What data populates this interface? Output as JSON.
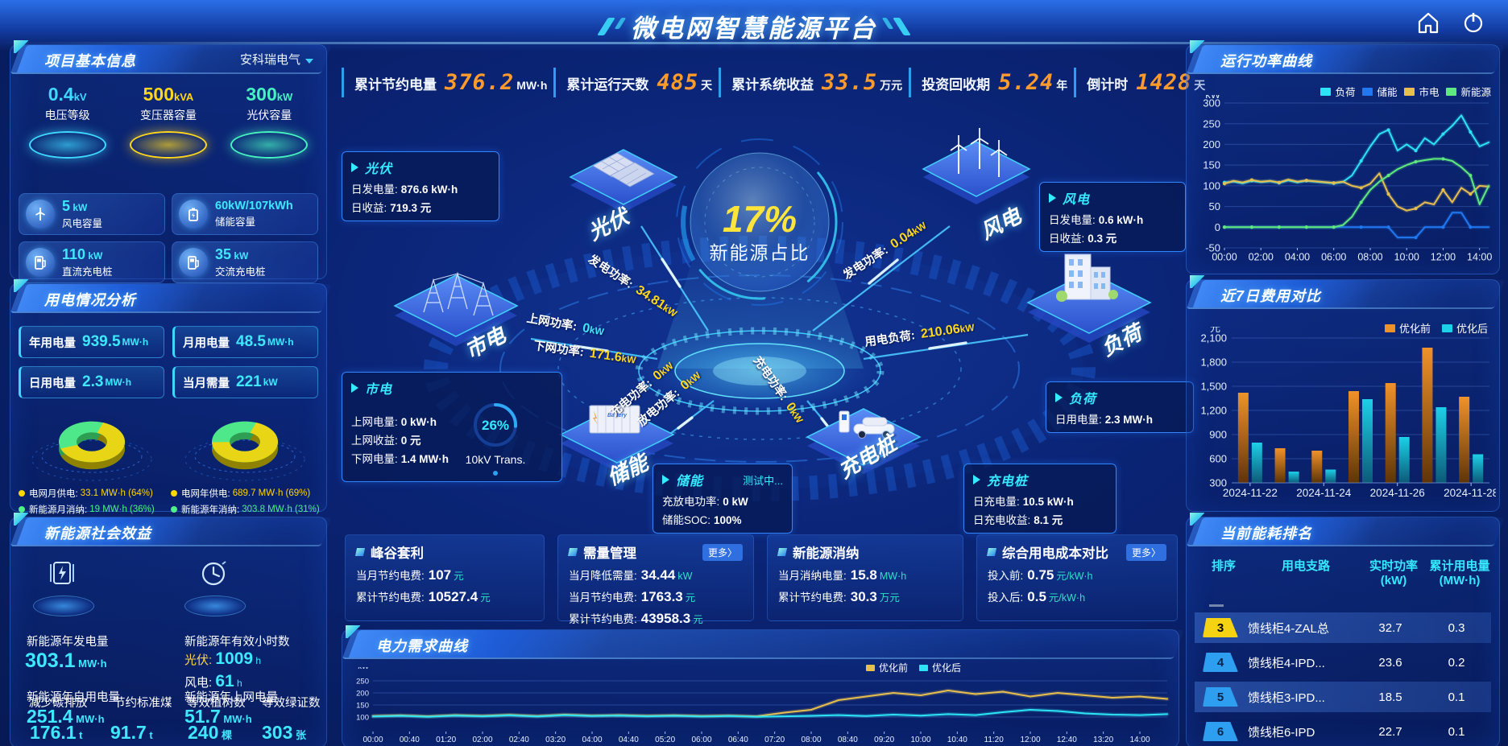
{
  "header": {
    "title": "微电网智慧能源平台"
  },
  "stats_bar": [
    {
      "label": "累计节约电量",
      "value": "376.2",
      "unit": "MW·h"
    },
    {
      "label": "累计运行天数",
      "value": "485",
      "unit": "天"
    },
    {
      "label": "累计系统收益",
      "value": "33.5",
      "unit": "万元"
    },
    {
      "label": "投资回收期",
      "value": "5.24",
      "unit": "年"
    },
    {
      "label": "倒计时",
      "value": "1428",
      "unit": "天"
    }
  ],
  "project_info": {
    "title": "项目基本信息",
    "company": "安科瑞电气",
    "pedestals": [
      {
        "value": "0.4",
        "unit": "kV",
        "label": "电压等级",
        "color": "#3fd9ff"
      },
      {
        "value": "500",
        "unit": "kVA",
        "label": "变压器容量",
        "color": "#ffd61d"
      },
      {
        "value": "300",
        "unit": "kW",
        "label": "光伏容量",
        "color": "#46f3c0"
      }
    ],
    "cards": [
      {
        "value": "5",
        "unit": "kW",
        "label": "风电容量",
        "icon": "wind-turbine-icon"
      },
      {
        "value": "60kW/107kWh",
        "unit": "",
        "label": "储能容量",
        "icon": "battery-icon"
      },
      {
        "value": "110",
        "unit": "kW",
        "label": "直流充电桩",
        "icon": "dc-charger-icon"
      },
      {
        "value": "35",
        "unit": "kW",
        "label": "交流充电桩",
        "icon": "ac-charger-icon"
      }
    ]
  },
  "usage_analysis": {
    "title": "用电情况分析",
    "stats": [
      {
        "label": "年用电量",
        "value": "939.5",
        "unit": "MW·h"
      },
      {
        "label": "月用电量",
        "value": "48.5",
        "unit": "MW·h"
      },
      {
        "label": "日用电量",
        "value": "2.3",
        "unit": "MW·h"
      },
      {
        "label": "当月需量",
        "value": "221",
        "unit": "kW"
      }
    ],
    "legend_month": [
      {
        "label": "电网月供电:",
        "value": "33.1 MW·h (64%)",
        "color": "#ffd800"
      },
      {
        "label": "新能源月消纳:",
        "value": "19 MW·h (36%)",
        "color": "#4ef08a"
      }
    ],
    "legend_year": [
      {
        "label": "电网年供电:",
        "value": "689.7 MW·h (69%)",
        "color": "#ffd800"
      },
      {
        "label": "新能源年消纳:",
        "value": "303.8 MW·h (31%)",
        "color": "#4ef08a"
      }
    ]
  },
  "social_benefit": {
    "title": "新能源社会效益",
    "gen": {
      "label": "新能源年发电量",
      "value": "303.1",
      "unit": "MW·h"
    },
    "hours": {
      "label": "新能源年有效小时数",
      "pv_label": "光伏:",
      "pv_value": "1009",
      "pv_unit": "h",
      "wind_label": "风电:",
      "wind_value": "61",
      "wind_unit": "h"
    },
    "self_use": {
      "label": "新能源年自用电量",
      "value": "251.4",
      "unit": "MW·h"
    },
    "co2": {
      "label": "减少碳排放",
      "value": "176.1",
      "unit": "t"
    },
    "coal": {
      "label": "节约标准煤",
      "value": "91.7",
      "unit": "t"
    },
    "to_grid": {
      "label": "新能源年上网电量",
      "value": "51.7",
      "unit": "MW·h"
    },
    "trees": {
      "label": "等效植树数",
      "value": "240",
      "unit": "棵"
    },
    "certs": {
      "label": "等效绿证数",
      "value": "303",
      "unit": "张"
    }
  },
  "flow": {
    "center_value": "17%",
    "center_label": "新能源占比",
    "nodes": {
      "pv": {
        "name": "光伏",
        "rows": [
          {
            "label": "日发电量:",
            "value": "876.6 kW·h"
          },
          {
            "label": "日收益:",
            "value": "719.3 元"
          }
        ]
      },
      "wind": {
        "name": "风电",
        "rows": [
          {
            "label": "日发电量:",
            "value": "0.6 kW·h"
          },
          {
            "label": "日收益:",
            "value": "0.3 元"
          }
        ]
      },
      "grid": {
        "name": "市电",
        "rows": [
          {
            "label": "上网电量:",
            "value": "0 kW·h"
          },
          {
            "label": "上网收益:",
            "value": "0 元"
          },
          {
            "label": "下网电量:",
            "value": "1.4 MW·h"
          }
        ]
      },
      "load": {
        "name": "负荷",
        "rows": [
          {
            "label": "日用电量:",
            "value": "2.3 MW·h"
          }
        ]
      },
      "storage": {
        "name": "储能",
        "status": "测试中...",
        "rows": [
          {
            "label": "充放电功率:",
            "value": "0 kW"
          },
          {
            "label": "储能SOC:",
            "value": "100%"
          }
        ]
      },
      "charger": {
        "name": "充电桩",
        "rows": [
          {
            "label": "日充电量:",
            "value": "10.5 kW·h"
          },
          {
            "label": "日充电收益:",
            "value": "8.1 元"
          }
        ]
      }
    },
    "flow_labels": [
      {
        "label": "发电功率:",
        "value": "34.81",
        "unit": "kW",
        "color": "#ffd81e"
      },
      {
        "label": "发电功率:",
        "value": "0.04",
        "unit": "kW",
        "color": "#ffd81e"
      },
      {
        "label": "上网功率:",
        "value": "0",
        "unit": "kW",
        "color": "#3fe8ff"
      },
      {
        "label": "下网功率:",
        "value": "171.6",
        "unit": "kW",
        "color": "#ffd81e"
      },
      {
        "label": "用电负荷:",
        "value": "210.06",
        "unit": "kW",
        "color": "#ffd81e"
      },
      {
        "label": "充电功率:",
        "value": "0",
        "unit": "kW",
        "color": "#ffd81e"
      },
      {
        "label": "放电功率:",
        "value": "0",
        "unit": "kW",
        "color": "#ffd81e"
      },
      {
        "label": "充电功率:",
        "value": "0",
        "unit": "kW",
        "color": "#ffd81e"
      }
    ],
    "transformer": {
      "pct": "26%",
      "label": "10kV Trans."
    }
  },
  "bottom_stats": [
    {
      "title": "峰谷套利",
      "more": "",
      "rows": [
        {
          "label": "当月节约电费:",
          "value": "107",
          "unit": "元"
        },
        {
          "label": "累计节约电费:",
          "value": "10527.4",
          "unit": "元"
        }
      ]
    },
    {
      "title": "需量管理",
      "more": "更多〉",
      "rows": [
        {
          "label": "当月降低需量:",
          "value": "34.44",
          "unit": "kW"
        },
        {
          "label": "当月节约电费:",
          "value": "1763.3",
          "unit": "元"
        },
        {
          "label": "累计节约电费:",
          "value": "43958.3",
          "unit": "元"
        }
      ]
    },
    {
      "title": "新能源消纳",
      "more": "",
      "rows": [
        {
          "label": "当月消纳电量:",
          "value": "15.8",
          "unit": "MW·h"
        },
        {
          "label": "累计节约电费:",
          "value": "30.3",
          "unit": "万元"
        }
      ]
    },
    {
      "title": "综合用电成本对比",
      "more": "更多〉",
      "rows": [
        {
          "label": "投入前:",
          "value": "0.75",
          "unit": "元/kW·h"
        },
        {
          "label": "投入后:",
          "value": "0.5",
          "unit": "元/kW·h"
        }
      ]
    }
  ],
  "ranking": {
    "title": "当前能耗排名",
    "headers": [
      {
        "l1": "排序",
        "l2": ""
      },
      {
        "l1": "用电支路",
        "l2": ""
      },
      {
        "l1": "实时功率",
        "l2": "(kW)"
      },
      {
        "l1": "累计用电量",
        "l2": "(MW·h)"
      }
    ],
    "rows": [
      {
        "rank": "3",
        "name": "馈线柜4-ZAL总",
        "power": "32.7",
        "energy": "0.3",
        "badge": "#f5d312",
        "highlight": true
      },
      {
        "rank": "4",
        "name": "馈线柜4-IPD...",
        "power": "23.6",
        "energy": "0.2",
        "badge": "#2e9ff0",
        "highlight": false
      },
      {
        "rank": "5",
        "name": "馈线柜3-IPD...",
        "power": "18.5",
        "energy": "0.1",
        "badge": "#2e9ff0",
        "highlight": true
      },
      {
        "rank": "6",
        "name": "馈线柜6-IPD",
        "power": "22.7",
        "energy": "0.1",
        "badge": "#2e9ff0",
        "highlight": false
      }
    ]
  },
  "chart_data": [
    {
      "id": "power_curve",
      "type": "line",
      "title": "运行功率曲线",
      "ylabel": "kW",
      "ylim": [
        -50,
        300
      ],
      "yticks": [
        300,
        250,
        200,
        150,
        100,
        50,
        0,
        -50
      ],
      "xlim_hours": [
        0,
        14.5
      ],
      "x_hours_step": 0.5,
      "xtick_labels": [
        "00:00",
        "02:00",
        "04:00",
        "06:00",
        "08:00",
        "10:00",
        "12:00",
        "14:00"
      ],
      "legend_position": "top",
      "grid": true,
      "series": [
        {
          "name": "负荷",
          "color": "#2de4f6",
          "values": [
            108,
            110,
            106,
            112,
            109,
            111,
            107,
            113,
            108,
            112,
            110,
            108,
            106,
            109,
            125,
            160,
            195,
            225,
            235,
            185,
            200,
            185,
            215,
            200,
            225,
            245,
            270,
            230,
            195,
            205
          ]
        },
        {
          "name": "储能",
          "color": "#2079f2",
          "values": [
            0,
            0,
            0,
            0,
            0,
            0,
            0,
            0,
            0,
            0,
            0,
            0,
            0,
            0,
            0,
            0,
            0,
            0,
            0,
            -25,
            -25,
            -25,
            0,
            0,
            0,
            35,
            35,
            0,
            0,
            0
          ]
        },
        {
          "name": "市电",
          "color": "#e7bf4e",
          "values": [
            105,
            112,
            108,
            114,
            110,
            112,
            108,
            115,
            110,
            113,
            111,
            109,
            107,
            110,
            100,
            95,
            105,
            130,
            80,
            50,
            40,
            45,
            60,
            55,
            90,
            60,
            95,
            80,
            100,
            98
          ]
        },
        {
          "name": "新能源",
          "color": "#5fe97e",
          "values": [
            0,
            0,
            0,
            0,
            0,
            0,
            0,
            0,
            0,
            0,
            0,
            0,
            0,
            5,
            25,
            60,
            90,
            110,
            125,
            140,
            150,
            158,
            162,
            165,
            165,
            160,
            145,
            125,
            55,
            100
          ]
        }
      ]
    },
    {
      "id": "cost_compare",
      "type": "bar",
      "title": "近7日费用对比",
      "ylabel": "元",
      "ylim": [
        300,
        2100
      ],
      "yticks": [
        2100,
        1800,
        1500,
        1200,
        900,
        600,
        300
      ],
      "categories": [
        "2024-11-22",
        "2024-11-23",
        "2024-11-24",
        "2024-11-25",
        "2024-11-26",
        "2024-11-27",
        "2024-11-28"
      ],
      "xtick_labels": [
        "2024-11-22",
        "2024-11-24",
        "2024-11-26",
        "2024-11-28"
      ],
      "legend_position": "top-right",
      "grid": true,
      "series": [
        {
          "name": "优化前",
          "color": "#f0922a",
          "values": [
            1420,
            730,
            700,
            1440,
            1540,
            1980,
            1370
          ]
        },
        {
          "name": "优化后",
          "color": "#1ed0e8",
          "values": [
            800,
            440,
            465,
            1340,
            870,
            1240,
            655
          ]
        }
      ]
    },
    {
      "id": "demand_curve",
      "type": "line",
      "title": "电力需求曲线",
      "ylabel": "kW",
      "ylim": [
        40,
        280
      ],
      "yticks": [
        250,
        200,
        150,
        100
      ],
      "xlim_hours": [
        0,
        14.5
      ],
      "x_hours_step": 0.5,
      "xtick_labels": [
        "00:00",
        "00:40",
        "01:20",
        "02:00",
        "02:40",
        "03:20",
        "04:00",
        "04:40",
        "05:20",
        "06:00",
        "06:40",
        "07:20",
        "08:00",
        "08:40",
        "09:20",
        "10:00",
        "10:40",
        "11:20",
        "12:00",
        "12:40",
        "13:20",
        "14:00"
      ],
      "legend_position": "top-right",
      "grid": true,
      "series": [
        {
          "name": "优化前",
          "color": "#e7bf4e",
          "values": [
            104,
            107,
            103,
            108,
            105,
            109,
            104,
            110,
            106,
            108,
            105,
            107,
            104,
            106,
            103,
            118,
            130,
            170,
            185,
            200,
            190,
            210,
            195,
            205,
            185,
            200,
            190,
            180,
            185,
            175
          ]
        },
        {
          "name": "优化后",
          "color": "#2de4f6",
          "values": [
            102,
            105,
            101,
            106,
            103,
            107,
            102,
            108,
            104,
            106,
            103,
            105,
            102,
            104,
            101,
            103,
            105,
            108,
            104,
            110,
            106,
            112,
            108,
            120,
            130,
            125,
            115,
            110,
            108,
            112
          ]
        }
      ]
    },
    {
      "id": "month_mix",
      "type": "pie",
      "labels": [
        "电网月供电",
        "新能源月消纳"
      ],
      "values": [
        64,
        36
      ],
      "colors": [
        "#e8d616",
        "#4ee88a"
      ]
    },
    {
      "id": "year_mix",
      "type": "pie",
      "labels": [
        "电网年供电",
        "新能源年消纳"
      ],
      "values": [
        69,
        31
      ],
      "colors": [
        "#e8d616",
        "#4ee88a"
      ]
    }
  ]
}
